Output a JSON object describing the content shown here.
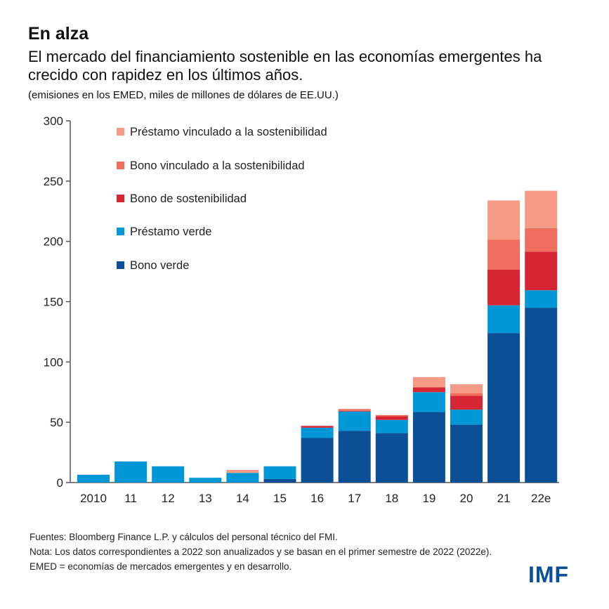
{
  "title": "En alza",
  "subtitle": "El mercado del financiamiento sostenible en las economías emergentes ha crecido con rapidez en los últimos años.",
  "units": "(emisiones en los EMED, miles de millones de dólares de EE.UU.)",
  "notes": [
    "Fuentes: Bloomberg Finance L.P. y cálculos del personal técnico del FMI.",
    "Nota: Los datos correspondientes a 2022 son anualizados y se basan en el primer semestre de 2022 (2022e).",
    "EMED = economías de mercados emergentes y en desarrollo."
  ],
  "logo": "IMF",
  "chart_data": {
    "type": "bar",
    "stacked": true,
    "categories": [
      "2010",
      "11",
      "12",
      "13",
      "14",
      "15",
      "16",
      "17",
      "18",
      "19",
      "20",
      "21",
      "22e"
    ],
    "ylim": [
      0,
      300
    ],
    "yticks": [
      0,
      50,
      100,
      150,
      200,
      250,
      300
    ],
    "legend_position": "top-left",
    "grid": false,
    "series": [
      {
        "name": "Bono verde",
        "color": "#0b4f96",
        "values": [
          0,
          0,
          0,
          0,
          0,
          3,
          37,
          43,
          41,
          58.5,
          48,
          124,
          145
        ]
      },
      {
        "name": "Préstamo verde",
        "color": "#0097d7",
        "values": [
          6.5,
          17.5,
          13.5,
          4,
          8,
          10.5,
          8.5,
          16,
          11,
          16.5,
          12.5,
          23,
          14.5
        ]
      },
      {
        "name": "Bono de sostenibilidad",
        "color": "#d62634",
        "values": [
          0,
          0,
          0,
          0,
          0,
          0,
          1.5,
          0.5,
          3,
          4,
          11.5,
          29.5,
          32
        ]
      },
      {
        "name": "Bono vinculado a la sostenibilidad",
        "color": "#ef6e5e",
        "values": [
          0,
          0,
          0,
          0,
          0,
          0,
          0,
          1.5,
          1,
          0,
          2,
          25,
          19.5
        ]
      },
      {
        "name": "Préstamo vinculado a la sostenibilidad",
        "color": "#f59a85",
        "values": [
          0,
          0,
          0,
          0,
          2.5,
          0,
          0,
          0,
          0,
          8.5,
          7.5,
          32.5,
          31
        ]
      }
    ]
  }
}
